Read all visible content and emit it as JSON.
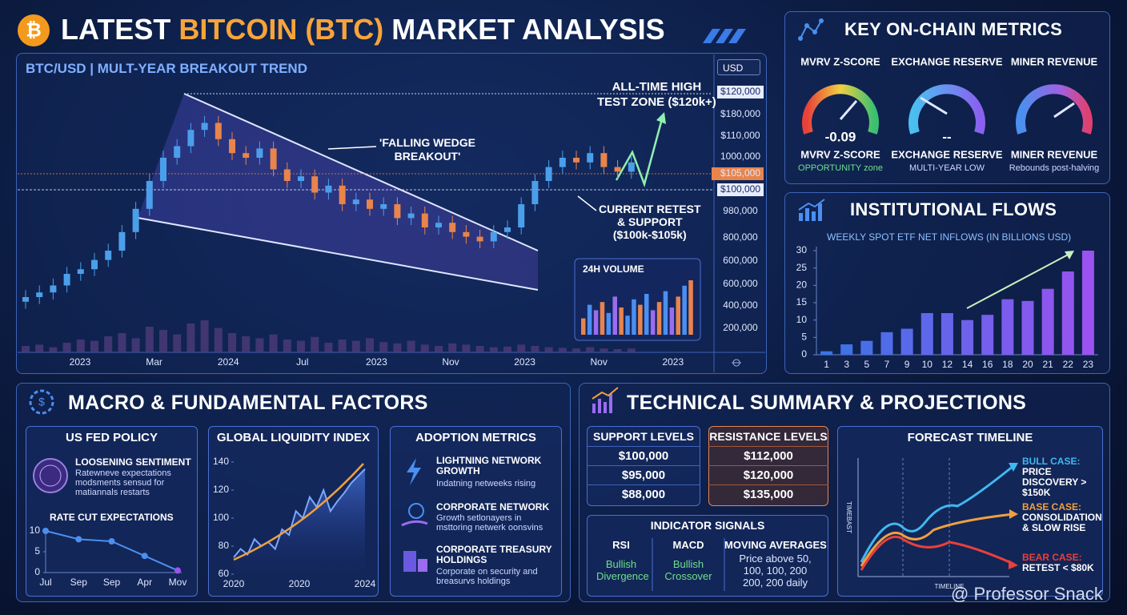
{
  "header": {
    "title_pre": "LATEST ",
    "title_accent": "BITCOIN (BTC)",
    "title_post": " MARKET ANALYSIS"
  },
  "chart_data": [
    {
      "type": "candlestick",
      "title": "BTC/USD | MULT-YEAR BREAKOUT TREND",
      "currency": "USD",
      "x_labels": [
        "2023",
        "Mar",
        "2024",
        "Jul",
        "2023",
        "Nov",
        "2023",
        "Nov",
        "2023"
      ],
      "price_labels": [
        "$120,000",
        "$180,000",
        "$110,000",
        "1000,000",
        "$105,000",
        "$100,000",
        "980,000",
        "800,000",
        "600,000",
        "600,000",
        "400,000",
        "200,000"
      ],
      "annotations": [
        "ALL-TIME HIGH",
        "TEST ZONE ($120k+)",
        "'FALLING WEDGE",
        "BREAKOUT'",
        "CURRENT RETEST",
        "& SUPPORT",
        "($100k-$105k)"
      ],
      "up_color": "#4b9fea",
      "down_color": "#e8844c",
      "volume_color": "#4a3a78",
      "ylim": [
        0,
        100
      ],
      "volume_lim": [
        0,
        100
      ],
      "open": [
        8,
        10,
        12,
        15,
        20,
        22,
        26,
        30,
        38,
        48,
        60,
        70,
        75,
        82,
        85,
        78,
        72,
        70,
        74,
        65,
        60,
        62,
        55,
        58,
        50,
        52,
        48,
        50,
        44,
        46,
        40,
        42,
        38,
        36,
        34,
        38,
        40,
        50,
        60,
        66,
        70,
        68,
        72,
        66,
        64
      ],
      "close": [
        10,
        12,
        15,
        20,
        22,
        26,
        30,
        38,
        48,
        60,
        70,
        75,
        82,
        85,
        78,
        72,
        70,
        74,
        65,
        60,
        62,
        55,
        58,
        50,
        52,
        48,
        50,
        44,
        46,
        40,
        42,
        38,
        36,
        34,
        38,
        40,
        50,
        60,
        66,
        70,
        68,
        72,
        66,
        64,
        68
      ],
      "high": [
        13,
        15,
        18,
        23,
        25,
        29,
        33,
        41,
        51,
        63,
        73,
        78,
        85,
        88,
        88,
        81,
        75,
        77,
        77,
        68,
        65,
        65,
        61,
        61,
        55,
        55,
        53,
        53,
        49,
        49,
        45,
        45,
        41,
        39,
        41,
        43,
        53,
        63,
        69,
        73,
        73,
        75,
        75,
        69,
        71
      ],
      "low": [
        5,
        7,
        9,
        12,
        17,
        19,
        23,
        27,
        35,
        45,
        57,
        67,
        72,
        79,
        75,
        69,
        67,
        67,
        62,
        57,
        57,
        52,
        52,
        47,
        47,
        45,
        45,
        41,
        41,
        37,
        37,
        35,
        33,
        31,
        31,
        35,
        37,
        47,
        57,
        63,
        65,
        65,
        63,
        61,
        61
      ],
      "volume": [
        10,
        12,
        8,
        15,
        20,
        18,
        25,
        30,
        22,
        40,
        35,
        28,
        45,
        50,
        38,
        30,
        25,
        22,
        28,
        20,
        18,
        24,
        15,
        20,
        18,
        22,
        16,
        14,
        18,
        12,
        10,
        14,
        12,
        10,
        8,
        9,
        12,
        10,
        8,
        7,
        6,
        8,
        6,
        5,
        6
      ]
    },
    {
      "type": "bar",
      "title": "24H VOLUME",
      "ylim": [
        0,
        100
      ],
      "values": [
        30,
        55,
        45,
        60,
        40,
        70,
        50,
        35,
        65,
        55,
        75,
        45,
        60,
        80,
        50,
        70,
        90,
        100
      ],
      "colors": [
        "#e8844c",
        "#4b8ff0",
        "#9b6cf0",
        "#e8844c",
        "#4b8ff0",
        "#9b6cf0",
        "#e8844c",
        "#4b8ff0",
        "#4b8ff0",
        "#e8844c",
        "#4b8ff0",
        "#9b6cf0",
        "#e8844c",
        "#4b8ff0",
        "#9b6cf0",
        "#e8844c",
        "#4b8ff0",
        "#e8844c"
      ]
    },
    {
      "type": "bar",
      "title": "WEEKLY SPOT ETF NET INFLOWS (IN BILLIONS USD)",
      "categories": [
        "1",
        "3",
        "5",
        "7",
        "9",
        "10",
        "12",
        "14",
        "16",
        "18",
        "20",
        "21",
        "22",
        "23"
      ],
      "values": [
        1,
        3,
        4,
        6.5,
        7.5,
        12,
        12,
        10,
        11.5,
        16,
        15.5,
        19,
        24,
        30
      ],
      "colors": [
        "#3a74e6",
        "#9a52f0"
      ],
      "ylim": [
        0,
        30
      ],
      "yticks": [
        0,
        5,
        10,
        15,
        20,
        25,
        30
      ],
      "grid": false
    },
    {
      "type": "line",
      "title": "GLOBAL LIQUIDITY INDEX",
      "x_labels": [
        "2020",
        "2020",
        "2024"
      ],
      "values": [
        72,
        78,
        74,
        85,
        80,
        83,
        78,
        92,
        88,
        105,
        100,
        115,
        108,
        120,
        105,
        112,
        118,
        125,
        130,
        135
      ],
      "color": "#7aa8ff",
      "trend_color": "#f0a040",
      "ylim": [
        60,
        140
      ],
      "yticks": [
        60,
        80,
        100,
        120,
        140
      ]
    },
    {
      "type": "line",
      "title": "RATE CUT EXPECTATIONS",
      "categories": [
        "Jul",
        "Sep",
        "Sep",
        "Apr",
        "Mov"
      ],
      "values": [
        10,
        8,
        7.5,
        4,
        0.5
      ],
      "colors": [
        "#4b8ff0",
        "#9b52f0"
      ],
      "ylim": [
        0,
        10
      ],
      "yticks": [
        0,
        5,
        10
      ]
    }
  ],
  "onchain": {
    "title": "KEY ON-CHAIN METRICS",
    "gauges": [
      {
        "name": "MVRV Z-SCORE",
        "reading": "-0.09",
        "label": "MVRV Z-SCORE",
        "note": "OPPORTUNITY zone"
      },
      {
        "name": "EXCHANGE RESERVE",
        "reading": "--",
        "label": "EXCHANGE RESERVE",
        "note": "MULTI-YEAR LOW"
      },
      {
        "name": "MINER REVENUE",
        "reading": "",
        "label": "MINER REVENUE",
        "note": "Rebounds post-halving"
      }
    ]
  },
  "institutional": {
    "title": "INSTITUTIONAL FLOWS"
  },
  "macro": {
    "title": "MACRO & FUNDAMENTAL FACTORS",
    "fed": {
      "title": "US FED POLICY",
      "heading": "LOOSENING SENTIMENT",
      "body": "Ratewneve expectations modsments sensud for matiannals restarts"
    },
    "adoption": {
      "title": "ADOPTION METRICS",
      "items": [
        {
          "title": "LIGHTNING NETWORK GROWTH",
          "body": "Indatning netweeks rising"
        },
        {
          "title": "CORPORATE NETWORK",
          "body": "Growth setlonayers in msttoring netwerk oonsvins"
        },
        {
          "title": "CORPORATE TREASURY HOLDINGS",
          "body": "Corporate on security and breasurvs holdings"
        }
      ]
    }
  },
  "technical": {
    "title": "TECHNICAL SUMMARY & PROJECTIONS",
    "support": {
      "title": "SUPPORT LEVELS",
      "levels": [
        "$100,000",
        "$95,000",
        "$88,000"
      ]
    },
    "resistance": {
      "title": "RESISTANCE LEVELS",
      "levels": [
        "$112,000",
        "$120,000",
        "$135,000"
      ]
    },
    "indicators": {
      "title": "INDICATOR SIGNALS",
      "items": [
        {
          "name": "RSI",
          "signal": "Bullish Divergence"
        },
        {
          "name": "MACD",
          "signal": "Bullish Crossover"
        },
        {
          "name": "MOVING AVERAGES",
          "signal": "Price above 50, 100, 100, 200 200, 200 daily"
        }
      ]
    },
    "forecast": {
      "title": "FORECAST TIMELINE",
      "y_label": "TIMEBAST",
      "x_label": "TIMELINE",
      "cases": [
        {
          "name": "BULL CASE:",
          "detail": "PRICE DISCOVERY > $150K"
        },
        {
          "name": "BASE CASE:",
          "detail": "CONSOLIDATION & SLOW RISE"
        },
        {
          "name": "BEAR CASE:",
          "detail": "RETEST < $80K"
        }
      ]
    }
  },
  "watermark": "@ Professor Snack"
}
